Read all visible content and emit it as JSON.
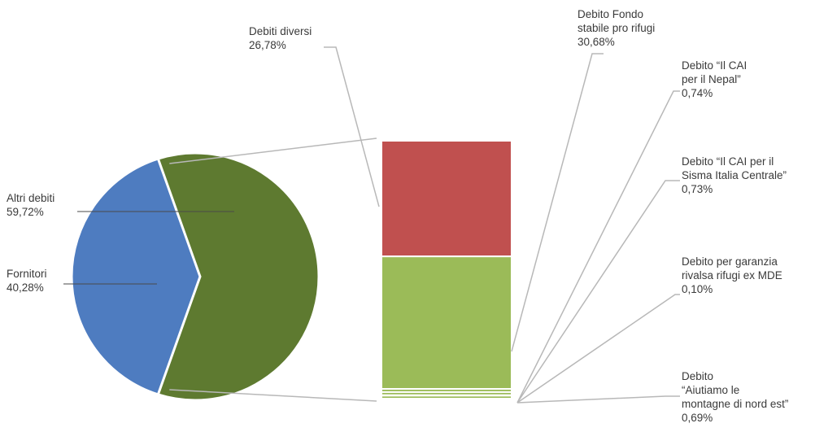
{
  "chart_data": {
    "type": "bar-of-pie",
    "title": "",
    "colors": {
      "altri_debiti": "#5e7a30",
      "fornitori": "#4e7cc0",
      "debiti_diversi": "#c0504f",
      "fondo_rifugi": "#9bbb58",
      "leader": "#b8b8b8",
      "callout": "#4a4a4a"
    },
    "pie": {
      "slices": [
        {
          "name": "Altri debiti",
          "value": 59.72,
          "label_value": "59,72%"
        },
        {
          "name": "Fornitori",
          "value": 40.28,
          "label_value": "40,28%"
        }
      ]
    },
    "bar": {
      "parent_slice": "Altri debiti",
      "segments": [
        {
          "name": "Debiti diversi",
          "value": 26.78,
          "label_value": "26,78%"
        },
        {
          "name": "Debito Fondo stabile pro rifugi",
          "lines": [
            "Debito Fondo",
            "stabile pro rifugi"
          ],
          "value": 30.68,
          "label_value": "30,68%"
        },
        {
          "name": "Debito “Il CAI per il Nepal”",
          "lines": [
            "Debito “Il CAI",
            "per il Nepal”"
          ],
          "value": 0.74,
          "label_value": "0,74%"
        },
        {
          "name": "Debito “Il CAI per il Sisma Italia Centrale”",
          "lines": [
            "Debito “Il CAI per il",
            "Sisma Italia Centrale”"
          ],
          "value": 0.73,
          "label_value": "0,73%"
        },
        {
          "name": "Debito per garanzia rivalsa rifugi ex MDE",
          "lines": [
            "Debito per garanzia",
            "rivalsa rifugi ex MDE"
          ],
          "value": 0.1,
          "label_value": "0,10%"
        },
        {
          "name": "Debito “Aiutiamo le montagne di nord est”",
          "lines": [
            "Debito",
            "“Aiutiamo le",
            "montagne di nord est”"
          ],
          "value": 0.69,
          "label_value": "0,69%"
        }
      ]
    }
  }
}
